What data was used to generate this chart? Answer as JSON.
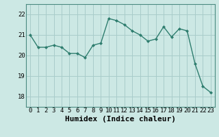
{
  "title": "",
  "xlabel": "Humidex (Indice chaleur)",
  "ylabel": "",
  "x": [
    0,
    1,
    2,
    3,
    4,
    5,
    6,
    7,
    8,
    9,
    10,
    11,
    12,
    13,
    14,
    15,
    16,
    17,
    18,
    19,
    20,
    21,
    22,
    23
  ],
  "y": [
    21.0,
    20.4,
    20.4,
    20.5,
    20.4,
    20.1,
    20.1,
    19.9,
    20.5,
    20.6,
    21.8,
    21.7,
    21.5,
    21.2,
    21.0,
    20.7,
    20.8,
    21.4,
    20.9,
    21.3,
    21.2,
    19.6,
    18.5,
    18.2
  ],
  "line_color": "#2e7d6e",
  "marker": "D",
  "marker_size": 2,
  "bg_color": "#cce8e4",
  "grid_color": "#a8ccca",
  "ylim": [
    17.5,
    22.5
  ],
  "yticks": [
    18,
    19,
    20,
    21,
    22
  ],
  "xticks": [
    0,
    1,
    2,
    3,
    4,
    5,
    6,
    7,
    8,
    9,
    10,
    11,
    12,
    13,
    14,
    15,
    16,
    17,
    18,
    19,
    20,
    21,
    22,
    23
  ],
  "tick_fontsize": 6.5,
  "xlabel_fontsize": 8,
  "line_width": 1.0,
  "spine_color": "#4a8a80"
}
